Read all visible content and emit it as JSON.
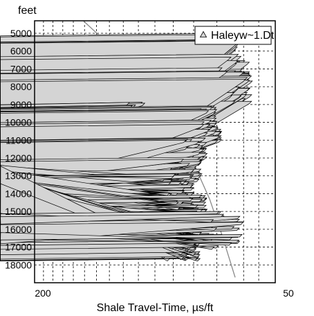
{
  "chart_data": {
    "type": "scatter",
    "ylabel": "feet",
    "xlabel": "Shale Travel-Time, µs/ft",
    "x_axis": {
      "min": 200,
      "max": 50,
      "scale": "log",
      "reversed": true,
      "tick_labels": [
        "200",
        "50"
      ]
    },
    "y_axis": {
      "min": 4300,
      "max": 19000,
      "reversed": true,
      "ticks": [
        5000,
        6000,
        7000,
        8000,
        9000,
        10000,
        11000,
        12000,
        13000,
        14000,
        15000,
        16000,
        17000,
        18000
      ],
      "tick_labels": [
        "5000",
        "6000",
        "7000",
        "8000",
        "9000",
        "10000",
        "11000",
        "12000",
        "13000",
        "14000",
        "15000",
        "16000",
        "17000",
        "18000"
      ]
    },
    "grid": true,
    "legend": {
      "position": "top-right",
      "entries": [
        "Haleyw~1.Dt"
      ]
    },
    "series": [
      {
        "name": "Haleyw~1.Dt",
        "marker": "triangle",
        "clusters": [
          {
            "depth": [
              5000,
              6300
            ],
            "dt": [
              61,
              72
            ],
            "n": 30
          },
          {
            "depth": [
              6300,
              7800
            ],
            "dt": [
              58,
              70
            ],
            "n": 45
          },
          {
            "depth": [
              7200,
              9000
            ],
            "dt": [
              57,
              66
            ],
            "n": 80
          },
          {
            "depth": [
              9000,
              9200
            ],
            "dt": [
              106,
              116
            ],
            "n": 6
          },
          {
            "depth": [
              9200,
              10500
            ],
            "dt": [
              70,
              78
            ],
            "n": 70
          },
          {
            "depth": [
              10000,
              11200
            ],
            "dt": [
              68,
              82
            ],
            "n": 90
          },
          {
            "depth": [
              11000,
              12200
            ],
            "dt": [
              74,
              86
            ],
            "n": 80
          },
          {
            "depth": [
              12200,
              13400
            ],
            "dt": [
              76,
              92
            ],
            "n": 90
          },
          {
            "depth": [
              13000,
              14200
            ],
            "dt": [
              79,
              95
            ],
            "n": 90
          },
          {
            "depth": [
              14200,
              15500
            ],
            "dt": [
              74,
              88
            ],
            "n": 80
          },
          {
            "depth": [
              15500,
              16800
            ],
            "dt": [
              71,
              92
            ],
            "n": 80
          },
          {
            "depth": [
              16800,
              17800
            ],
            "dt": [
              77,
              94
            ],
            "n": 60
          },
          {
            "depth": [
              15000,
              17200
            ],
            "dt": [
              60,
              72
            ],
            "n": 30
          }
        ]
      },
      {
        "name": "trend",
        "type": "line",
        "points": [
          {
            "dt": 151,
            "depth": 4300
          },
          {
            "dt": 121,
            "depth": 6300
          },
          {
            "dt": 103,
            "depth": 8300
          },
          {
            "dt": 90,
            "depth": 10300
          },
          {
            "dt": 80,
            "depth": 12300
          },
          {
            "dt": 73,
            "depth": 14300
          },
          {
            "dt": 68,
            "depth": 16300
          },
          {
            "dt": 63,
            "depth": 18700
          }
        ]
      }
    ]
  }
}
